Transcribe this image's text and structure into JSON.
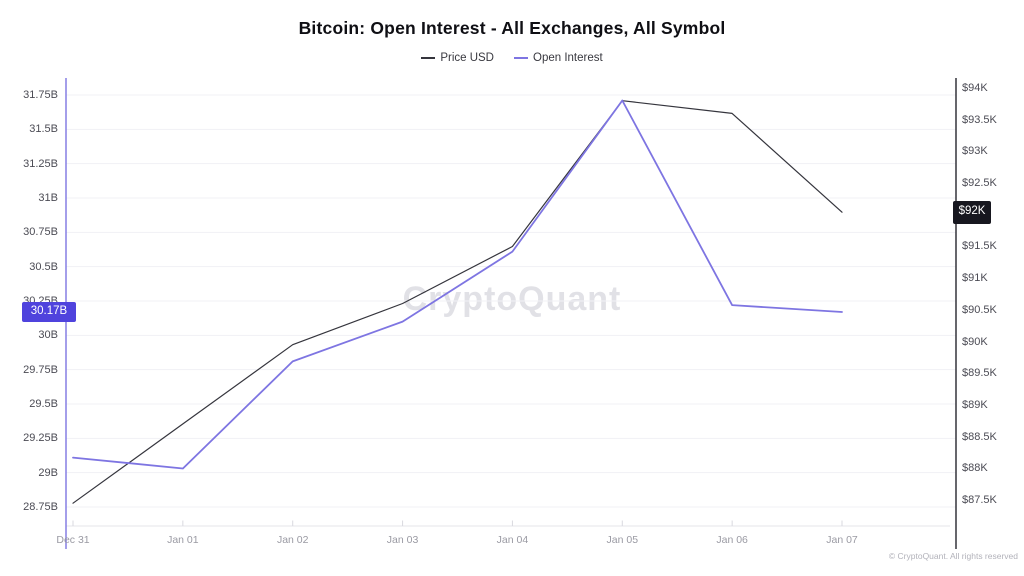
{
  "header": {
    "title": "Bitcoin: Open Interest - All Exchanges, All Symbol"
  },
  "watermark": "CryptoQuant",
  "attribution": "© CryptoQuant. All rights reserved",
  "chart_data": {
    "type": "line",
    "title": "Bitcoin: Open Interest - All Exchanges, All Symbol",
    "categories": [
      "Dec 31",
      "Jan 01",
      "Jan 02",
      "Jan 03",
      "Jan 04",
      "Jan 05",
      "Jan 06",
      "Jan 07"
    ],
    "series": [
      {
        "name": "Price USD",
        "yaxis": "right",
        "unit": "USD (thousands)",
        "color": "#35353d",
        "values": [
          87.45,
          88.7,
          89.95,
          90.6,
          91.5,
          93.8,
          93.6,
          92.04
        ]
      },
      {
        "name": "Open Interest",
        "yaxis": "left",
        "unit": "USD (billions)",
        "color": "#7e75e2",
        "values": [
          29.11,
          29.03,
          29.81,
          30.1,
          30.61,
          31.71,
          30.22,
          30.17
        ]
      }
    ],
    "left_axis": {
      "tick_labels": [
        "31.75B",
        "31.5B",
        "31.25B",
        "31B",
        "30.75B",
        "30.5B",
        "30.25B",
        "30B",
        "29.75B",
        "29.5B",
        "29.25B",
        "29B",
        "28.75B"
      ],
      "min": 28.75,
      "max": 31.75
    },
    "right_axis": {
      "tick_labels": [
        "$94K",
        "$93.5K",
        "$93K",
        "$92.5K",
        "$92K",
        "$91.5K",
        "$91K",
        "$90.5K",
        "$90K",
        "$89.5K",
        "$89K",
        "$88.5K",
        "$88K",
        "$87.5K"
      ],
      "min": 87.5,
      "max": 94
    },
    "latest_value_badges": {
      "open_interest": {
        "label": "30.17B",
        "value": 30.17,
        "color": "#4f43dd"
      },
      "price": {
        "label": "$92K",
        "value": 92.04,
        "color": "#17171f"
      }
    },
    "grid": true,
    "legend_position": "top"
  }
}
